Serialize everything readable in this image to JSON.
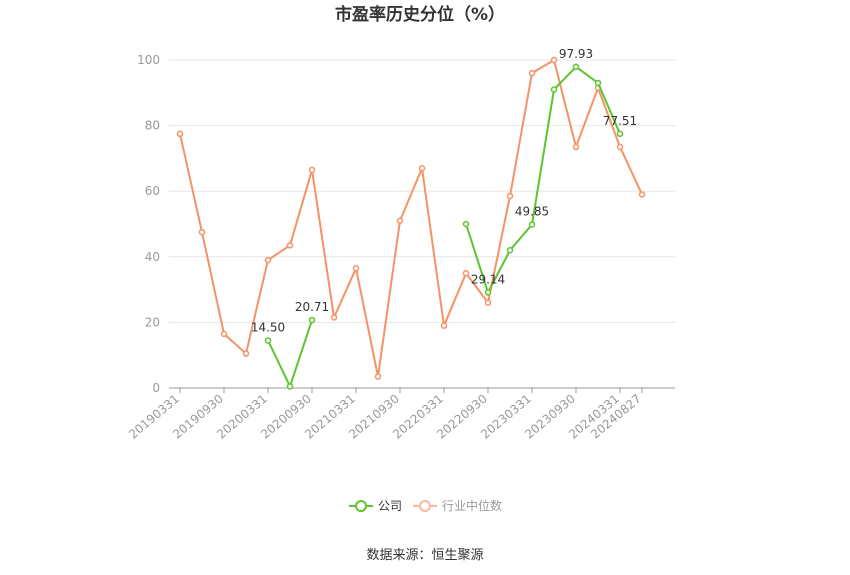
{
  "chart_data": {
    "type": "line",
    "title": "市盈率历史分位（%）",
    "source": "数据来源：恒生聚源",
    "x_tick_labels": [
      "20190331",
      "20190930",
      "20200331",
      "20200930",
      "20210331",
      "20210930",
      "20220331",
      "20220930",
      "20230331",
      "20230930",
      "20240331",
      "20240827"
    ],
    "x": [
      "20190331",
      "20190630",
      "20190930",
      "20191231",
      "20200331",
      "20200630",
      "20200930",
      "20201231",
      "20210331",
      "20210630",
      "20210930",
      "20211231",
      "20220331",
      "20220630",
      "20220930",
      "20221231",
      "20230331",
      "20230630",
      "20230930",
      "20231231",
      "20240331",
      "20240827"
    ],
    "ylim": [
      0,
      100
    ],
    "y_ticks": [
      0,
      20,
      40,
      60,
      80,
      100
    ],
    "grid": true,
    "legend_position": "bottom",
    "series": [
      {
        "name": "公司",
        "color": "#5cc42e",
        "values": [
          null,
          null,
          null,
          null,
          14.5,
          0.5,
          20.71,
          null,
          null,
          null,
          null,
          null,
          null,
          50.0,
          29.14,
          42.0,
          49.85,
          91.0,
          97.93,
          93.0,
          77.51,
          null
        ],
        "labels": [
          {
            "index": 4,
            "text": "14.50"
          },
          {
            "index": 6,
            "text": "20.71"
          },
          {
            "index": 14,
            "text": "29.14"
          },
          {
            "index": 16,
            "text": "49.85"
          },
          {
            "index": 18,
            "text": "97.93"
          },
          {
            "index": 20,
            "text": "77.51"
          }
        ]
      },
      {
        "name": "行业中位数",
        "color": "#f59266",
        "values": [
          77.5,
          47.5,
          16.5,
          10.5,
          39.0,
          43.5,
          66.5,
          21.5,
          36.5,
          3.5,
          51.0,
          67.0,
          19.0,
          35.0,
          26.0,
          58.5,
          96.0,
          100.0,
          73.5,
          91.5,
          73.5,
          59.0
        ]
      }
    ]
  }
}
